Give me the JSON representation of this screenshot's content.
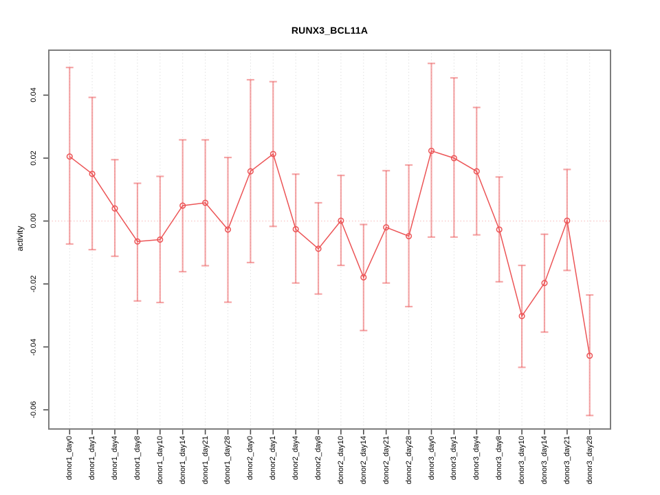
{
  "chart_data": {
    "type": "line",
    "title": "RUNX3_BCL11A",
    "xlabel": "",
    "ylabel": "activity",
    "categories": [
      "donor1_day0",
      "donor1_day1",
      "donor1_day4",
      "donor1_day8",
      "donor1_day10",
      "donor1_day14",
      "donor1_day21",
      "donor1_day28",
      "donor2_day0",
      "donor2_day1",
      "donor2_day4",
      "donor2_day8",
      "donor2_day10",
      "donor2_day14",
      "donor2_day21",
      "donor2_day28",
      "donor3_day0",
      "donor3_day1",
      "donor3_day4",
      "donor3_day8",
      "donor3_day10",
      "donor3_day14",
      "donor3_day21",
      "donor3_day28"
    ],
    "series": [
      {
        "name": "activity",
        "marker": "open-circle",
        "values": [
          0.0205,
          0.015,
          0.004,
          -0.0065,
          -0.0059,
          0.0049,
          0.0058,
          -0.0027,
          0.0158,
          0.0213,
          -0.0026,
          -0.0088,
          0.0001,
          -0.0179,
          -0.002,
          -0.0048,
          0.0223,
          0.02,
          0.0158,
          -0.0027,
          -0.0302,
          -0.0197,
          0.0001,
          -0.0428
        ],
        "error_lower": [
          -0.0073,
          -0.0091,
          -0.0112,
          -0.0254,
          -0.0259,
          -0.0161,
          -0.0142,
          -0.0258,
          -0.0132,
          -0.0017,
          -0.0197,
          -0.0232,
          -0.0141,
          -0.0348,
          -0.0197,
          -0.0272,
          -0.0051,
          -0.0051,
          -0.0044,
          -0.0193,
          -0.0465,
          -0.0353,
          -0.0157,
          -0.0618
        ],
        "error_upper": [
          0.0488,
          0.0393,
          0.0195,
          0.012,
          0.0142,
          0.0258,
          0.0258,
          0.0202,
          0.0449,
          0.0443,
          0.0149,
          0.0058,
          0.0145,
          -0.0011,
          0.016,
          0.0178,
          0.0501,
          0.0455,
          0.0361,
          0.014,
          -0.0141,
          -0.0042,
          0.0164,
          -0.0235
        ]
      }
    ],
    "ylim": [
      -0.0661,
      0.0543
    ],
    "ytick_values": [
      0.04,
      0.02,
      0.0,
      -0.02,
      -0.04,
      -0.06
    ],
    "ytick_labels": [
      "0.04",
      "0.02",
      "0.00",
      "-0.02",
      "-0.04",
      "-0.06"
    ],
    "grid": "vertical-dotted-per-category",
    "zero_line": true,
    "legend": "none",
    "colors": {
      "series_line": "#ec5456",
      "error_bar": "#f4a3a4",
      "zero_line": "#f9cccc",
      "gridline": "#e0e0e0",
      "plot_border": "#7d7d7d",
      "tick": "#4d4d4d",
      "text": "#000000",
      "background": "#ffffff"
    }
  }
}
